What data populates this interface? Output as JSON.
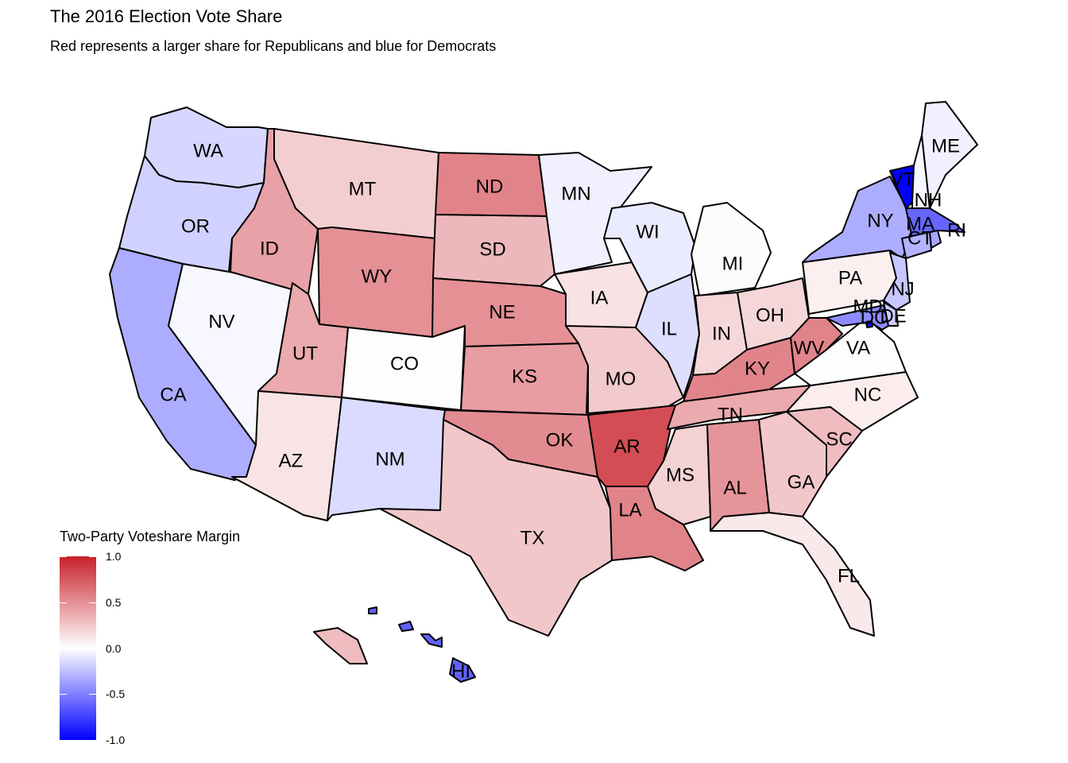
{
  "title": "The 2016 Election Vote Share",
  "subtitle": "Red represents a larger share for Republicans and blue for Democrats",
  "legend": {
    "title": "Two-Party Voteshare Margin",
    "ticks": [
      "1.0",
      "0.5",
      "0.0",
      "-0.5",
      "-1.0"
    ],
    "tick_values": [
      1.0,
      0.5,
      0.0,
      -0.5,
      -1.0
    ],
    "colors": {
      "high": "#c8202a",
      "mid": "#ffffff",
      "low": "#0000ff"
    }
  },
  "states": [
    {
      "abbr": "WA",
      "value": -0.16
    },
    {
      "abbr": "OR",
      "value": -0.18
    },
    {
      "abbr": "CA",
      "value": -0.32
    },
    {
      "abbr": "NV",
      "value": -0.03
    },
    {
      "abbr": "ID",
      "value": 0.42
    },
    {
      "abbr": "MT",
      "value": 0.22
    },
    {
      "abbr": "WY",
      "value": 0.5
    },
    {
      "abbr": "UT",
      "value": 0.38
    },
    {
      "abbr": "AZ",
      "value": 0.12
    },
    {
      "abbr": "CO",
      "value": 0.01
    },
    {
      "abbr": "NM",
      "value": -0.14
    },
    {
      "abbr": "ND",
      "value": 0.55
    },
    {
      "abbr": "SD",
      "value": 0.32
    },
    {
      "abbr": "NE",
      "value": 0.5
    },
    {
      "abbr": "KS",
      "value": 0.44
    },
    {
      "abbr": "OK",
      "value": 0.52
    },
    {
      "abbr": "TX",
      "value": 0.25
    },
    {
      "abbr": "MN",
      "value": -0.06
    },
    {
      "abbr": "IA",
      "value": 0.13
    },
    {
      "abbr": "MO",
      "value": 0.24
    },
    {
      "abbr": "AR",
      "value": 0.8
    },
    {
      "abbr": "LA",
      "value": 0.55
    },
    {
      "abbr": "WI",
      "value": -0.08
    },
    {
      "abbr": "IL",
      "value": -0.13
    },
    {
      "abbr": "MI",
      "value": 0.02
    },
    {
      "abbr": "IN",
      "value": 0.18
    },
    {
      "abbr": "OH",
      "value": 0.18
    },
    {
      "abbr": "KY",
      "value": 0.55
    },
    {
      "abbr": "TN",
      "value": 0.38
    },
    {
      "abbr": "MS",
      "value": 0.2
    },
    {
      "abbr": "AL",
      "value": 0.48
    },
    {
      "abbr": "GA",
      "value": 0.25
    },
    {
      "abbr": "FL",
      "value": 0.1
    },
    {
      "abbr": "SC",
      "value": 0.3
    },
    {
      "abbr": "NC",
      "value": 0.08
    },
    {
      "abbr": "VA",
      "value": 0.01
    },
    {
      "abbr": "WV",
      "value": 0.55
    },
    {
      "abbr": "PA",
      "value": 0.07
    },
    {
      "abbr": "NY",
      "value": -0.32
    },
    {
      "abbr": "VT",
      "value": -1.0
    },
    {
      "abbr": "NH",
      "value": -0.03
    },
    {
      "abbr": "ME",
      "value": -0.06
    },
    {
      "abbr": "MA",
      "value": -0.6
    },
    {
      "abbr": "RI",
      "value": -0.35
    },
    {
      "abbr": "CT",
      "value": -0.3
    },
    {
      "abbr": "NJ",
      "value": -0.22
    },
    {
      "abbr": "DE",
      "value": -0.2
    },
    {
      "abbr": "MD",
      "value": -0.45
    },
    {
      "abbr": "DC",
      "value": -0.95
    },
    {
      "abbr": "HI",
      "value": -0.62
    },
    {
      "abbr": "AK",
      "value": 0.3
    }
  ]
}
